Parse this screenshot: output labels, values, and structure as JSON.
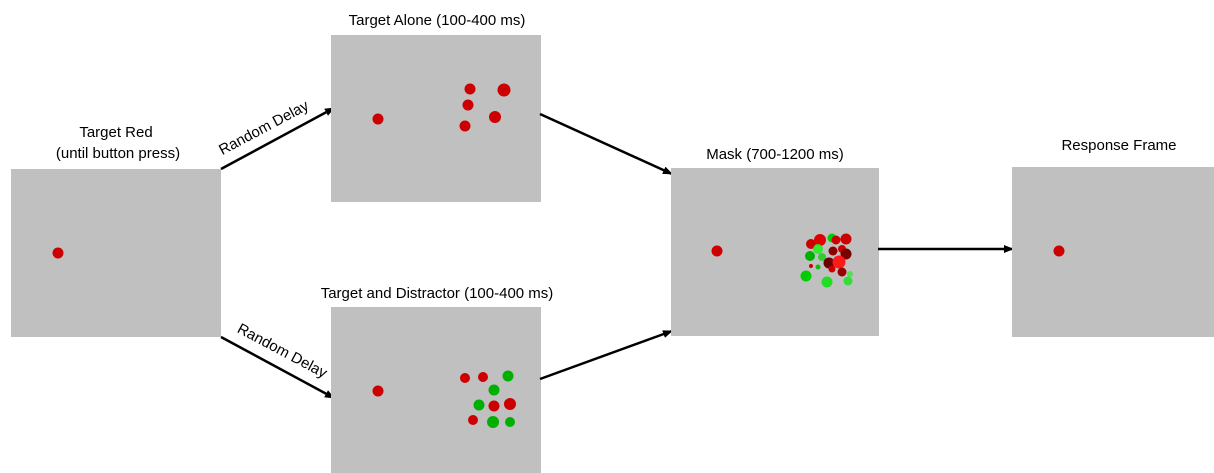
{
  "colors": {
    "panel": "#c0c0c0",
    "target_red": "#cc0000",
    "arrow": "#000000"
  },
  "panels": {
    "target_red": {
      "label_line1": "Target Red",
      "label_line2": "(until button press)"
    },
    "target_alone": {
      "label": "Target Alone (100-400 ms)"
    },
    "target_distractor": {
      "label": "Target and Distractor (100-400 ms)"
    },
    "mask": {
      "label": "Mask (700-1200 ms)"
    },
    "response": {
      "label": "Response Frame"
    }
  },
  "arrows": {
    "upper_label": "Random Delay",
    "lower_label": "Random Delay"
  }
}
